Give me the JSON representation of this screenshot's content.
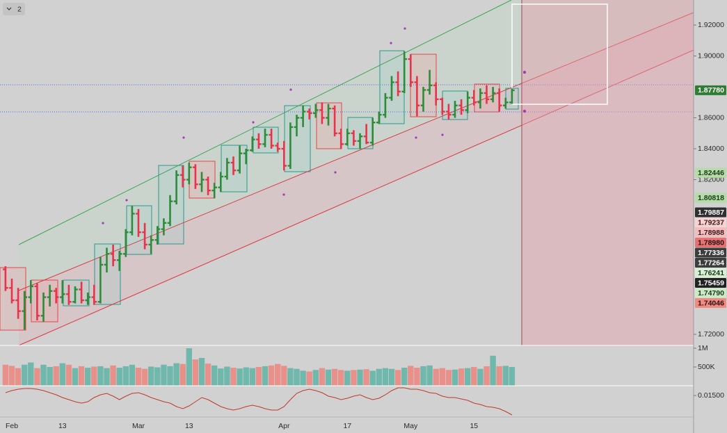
{
  "toolbar": {
    "label": "2"
  },
  "chart_data": [
    {
      "type": "ohlc",
      "categories": [
        null,
        "Feb",
        null,
        null,
        null,
        null,
        null,
        null,
        null,
        "13",
        null,
        null,
        null,
        null,
        null,
        null,
        null,
        null,
        null,
        null,
        null,
        "Mar",
        null,
        null,
        null,
        null,
        null,
        null,
        null,
        "13",
        null,
        null,
        null,
        null,
        null,
        null,
        null,
        null,
        null,
        null,
        null,
        null,
        null,
        null,
        "Apr",
        null,
        null,
        null,
        null,
        null,
        null,
        null,
        null,
        null,
        "17",
        null,
        null,
        null,
        null,
        null,
        null,
        null,
        null,
        null,
        "May",
        null,
        null,
        null,
        null,
        null,
        null,
        null,
        null,
        null,
        "15",
        null,
        null,
        null,
        null,
        null,
        null
      ],
      "open": [
        1.762,
        1.75,
        1.742,
        1.735,
        1.744,
        1.751,
        1.732,
        1.744,
        1.748,
        1.744,
        1.746,
        1.741,
        1.749,
        1.742,
        1.744,
        1.741,
        1.765,
        1.772,
        1.768,
        1.772,
        1.786,
        1.798,
        1.786,
        1.778,
        1.781,
        1.788,
        1.792,
        1.806,
        1.823,
        1.82,
        1.828,
        1.817,
        1.82,
        1.813,
        1.815,
        1.822,
        1.831,
        1.826,
        1.837,
        1.839,
        1.846,
        1.843,
        1.849,
        1.842,
        1.84,
        1.829,
        1.854,
        1.86,
        1.864,
        1.863,
        1.865,
        1.86,
        1.866,
        1.85,
        1.843,
        1.85,
        1.845,
        1.848,
        1.844,
        1.857,
        1.862,
        1.873,
        1.883,
        1.877,
        1.898,
        1.883,
        1.868,
        1.878,
        1.881,
        1.872,
        1.864,
        1.862,
        1.868,
        1.865,
        1.873,
        1.87,
        1.876,
        1.872,
        1.876,
        1.868,
        1.87
      ],
      "high": [
        1.764,
        1.756,
        1.75,
        1.748,
        1.755,
        1.753,
        1.747,
        1.752,
        1.75,
        1.755,
        1.752,
        1.751,
        1.754,
        1.747,
        1.752,
        1.77,
        1.776,
        1.778,
        1.774,
        1.788,
        1.803,
        1.801,
        1.792,
        1.784,
        1.79,
        1.795,
        1.81,
        1.826,
        1.829,
        1.831,
        1.83,
        1.825,
        1.822,
        1.818,
        1.825,
        1.834,
        1.835,
        1.842,
        1.84,
        1.848,
        1.85,
        1.853,
        1.853,
        1.844,
        1.845,
        1.857,
        1.862,
        1.868,
        1.866,
        1.869,
        1.87,
        1.869,
        1.868,
        1.853,
        1.853,
        1.852,
        1.85,
        1.856,
        1.86,
        1.864,
        1.876,
        1.887,
        1.89,
        1.903,
        1.901,
        1.887,
        1.88,
        1.891,
        1.883,
        1.873,
        1.869,
        1.871,
        1.872,
        1.877,
        1.878,
        1.879,
        1.881,
        1.88,
        1.879,
        1.873,
        1.879
      ],
      "low": [
        1.748,
        1.74,
        1.73,
        1.723,
        1.74,
        1.729,
        1.728,
        1.738,
        1.74,
        1.74,
        1.739,
        1.74,
        1.74,
        1.739,
        1.739,
        1.74,
        1.76,
        1.764,
        1.761,
        1.77,
        1.784,
        1.783,
        1.775,
        1.772,
        1.778,
        1.784,
        1.79,
        1.804,
        1.815,
        1.817,
        1.814,
        1.812,
        1.81,
        1.808,
        1.812,
        1.82,
        1.823,
        1.824,
        1.83,
        1.838,
        1.84,
        1.841,
        1.84,
        1.838,
        1.826,
        1.827,
        1.848,
        1.854,
        1.859,
        1.86,
        1.856,
        1.855,
        1.848,
        1.84,
        1.842,
        1.842,
        1.84,
        1.843,
        1.842,
        1.856,
        1.86,
        1.871,
        1.874,
        1.876,
        1.88,
        1.861,
        1.864,
        1.875,
        1.868,
        1.862,
        1.859,
        1.86,
        1.862,
        1.863,
        1.868,
        1.866,
        1.869,
        1.87,
        1.864,
        1.866,
        1.869
      ],
      "close": [
        1.75,
        1.742,
        1.735,
        1.744,
        1.751,
        1.732,
        1.744,
        1.748,
        1.744,
        1.746,
        1.741,
        1.749,
        1.742,
        1.744,
        1.741,
        1.765,
        1.772,
        1.768,
        1.772,
        1.786,
        1.798,
        1.786,
        1.778,
        1.781,
        1.788,
        1.792,
        1.806,
        1.823,
        1.82,
        1.828,
        1.817,
        1.82,
        1.813,
        1.815,
        1.822,
        1.831,
        1.826,
        1.837,
        1.839,
        1.846,
        1.843,
        1.849,
        1.842,
        1.84,
        1.829,
        1.854,
        1.86,
        1.864,
        1.863,
        1.865,
        1.86,
        1.866,
        1.85,
        1.843,
        1.85,
        1.845,
        1.848,
        1.844,
        1.857,
        1.862,
        1.873,
        1.883,
        1.877,
        1.898,
        1.883,
        1.868,
        1.878,
        1.881,
        1.872,
        1.864,
        1.862,
        1.868,
        1.865,
        1.873,
        1.87,
        1.876,
        1.872,
        1.876,
        1.868,
        1.87,
        1.8778
      ],
      "up_color": "#2e8b3a",
      "down_color": "#e8334a",
      "ylim": [
        1.7128,
        1.9362
      ],
      "yticks": [
        {
          "value": 1.92,
          "label": "1.92000"
        },
        {
          "value": 1.9,
          "label": "1.90000"
        },
        {
          "value": 1.86,
          "label": "1.86000"
        },
        {
          "value": 1.84,
          "label": "1.84000"
        },
        {
          "value": 1.82,
          "label": "1.82000"
        },
        {
          "value": 1.72,
          "label": "1.72000"
        }
      ],
      "price_tags": [
        {
          "value": 1.8778,
          "label": "1.87780",
          "color": "#2e7d32",
          "text_color": "#ffffff"
        },
        {
          "value": 1.82446,
          "label": "1.82446",
          "color": "#b5dba7",
          "text_color": "#1b3a1b"
        },
        {
          "value": 1.80818,
          "label": "1.80818",
          "color": "#b5dba7",
          "text_color": "#1b3a1b"
        },
        {
          "value": 1.79887,
          "label": "1.79887",
          "color": "#2f2f2f",
          "text_color": "#ffffff"
        },
        {
          "value": 1.79237,
          "label": "1.79237",
          "color": "#f7d3d3",
          "text_color": "#3a1b1b"
        },
        {
          "value": 1.78988,
          "label": "1.78988",
          "color": "#f4bcbc",
          "text_color": "#3a1b1b"
        },
        {
          "value": 1.7898,
          "label": "1.78980",
          "color": "#e57373",
          "text_color": "#2a0f0f"
        },
        {
          "value": 1.77336,
          "label": "1.77336",
          "color": "#3d3d3d",
          "text_color": "#ffffff"
        },
        {
          "value": 1.77264,
          "label": "1.77264",
          "color": "#3d3d3d",
          "text_color": "#ffffff"
        },
        {
          "value": 1.76241,
          "label": "1.76241",
          "color": "#d9efd5",
          "text_color": "#1b3a1b"
        },
        {
          "value": 1.75459,
          "label": "1.75459",
          "color": "#222222",
          "text_color": "#ffffff"
        },
        {
          "value": 1.7479,
          "label": "1.74790",
          "color": "#cdeac6",
          "text_color": "#1b3a1b"
        },
        {
          "value": 1.74046,
          "label": "1.74046",
          "color": "#ef8a80",
          "text_color": "#2a0f0f"
        }
      ]
    },
    {
      "type": "bar",
      "values": [
        560000,
        530000,
        470000,
        560000,
        620000,
        470000,
        560000,
        500000,
        520000,
        600000,
        560000,
        470000,
        520000,
        480000,
        510000,
        520000,
        470000,
        540000,
        480000,
        520000,
        560000,
        480000,
        450000,
        510000,
        490000,
        560000,
        520000,
        600000,
        580000,
        1000000,
        700000,
        740000,
        590000,
        540000,
        460000,
        510000,
        480000,
        460000,
        490000,
        470000,
        500000,
        520000,
        540000,
        580000,
        530000,
        470000,
        450000,
        400000,
        380000,
        420000,
        470000,
        430000,
        450000,
        420000,
        400000,
        420000,
        430000,
        440000,
        400000,
        450000,
        470000,
        450000,
        420000,
        480000,
        530000,
        480000,
        520000,
        540000,
        450000,
        470000,
        420000,
        430000,
        460000,
        470000,
        500000,
        450000,
        520000,
        800000,
        520000,
        530000,
        500000
      ],
      "up_color": "#6fb8ab",
      "down_color": "#e8908a",
      "ylim": [
        0,
        1074000
      ],
      "yticks": [
        {
          "value": 1000000,
          "label": "1M"
        },
        {
          "value": 500000,
          "label": "500K"
        }
      ]
    },
    {
      "type": "line",
      "values": [
        0.01572,
        0.01626,
        0.01661,
        0.01679,
        0.01679,
        0.01661,
        0.01626,
        0.01572,
        0.01519,
        0.01448,
        0.01394,
        0.01341,
        0.01306,
        0.01341,
        0.01448,
        0.01519,
        0.01554,
        0.01483,
        0.01394,
        0.01483,
        0.01554,
        0.01572,
        0.01519,
        0.01448,
        0.01394,
        0.01341,
        0.01306,
        0.01217,
        0.01163,
        0.01234,
        0.01341,
        0.01448,
        0.01394,
        0.01306,
        0.01217,
        0.01163,
        0.01128,
        0.01163,
        0.01217,
        0.01252,
        0.01217,
        0.01163,
        0.01128,
        0.01128,
        0.01217,
        0.01394,
        0.01554,
        0.01626,
        0.01661,
        0.01626,
        0.01572,
        0.01483,
        0.01448,
        0.01394,
        0.0143,
        0.01483,
        0.01519,
        0.01448,
        0.01394,
        0.0143,
        0.01519,
        0.01626,
        0.01697,
        0.01697,
        0.01661,
        0.01661,
        0.01626,
        0.01572,
        0.01554,
        0.01483,
        0.01448,
        0.01448,
        0.01412,
        0.01377,
        0.01306,
        0.0127,
        0.01217,
        0.01199,
        0.01163,
        0.01092,
        0.01003
      ],
      "color": "#c0392b",
      "ylim": [
        0.0095,
        0.0175
      ],
      "yticks": [
        {
          "value": 0.015,
          "label": "0.01500"
        }
      ]
    }
  ]
}
